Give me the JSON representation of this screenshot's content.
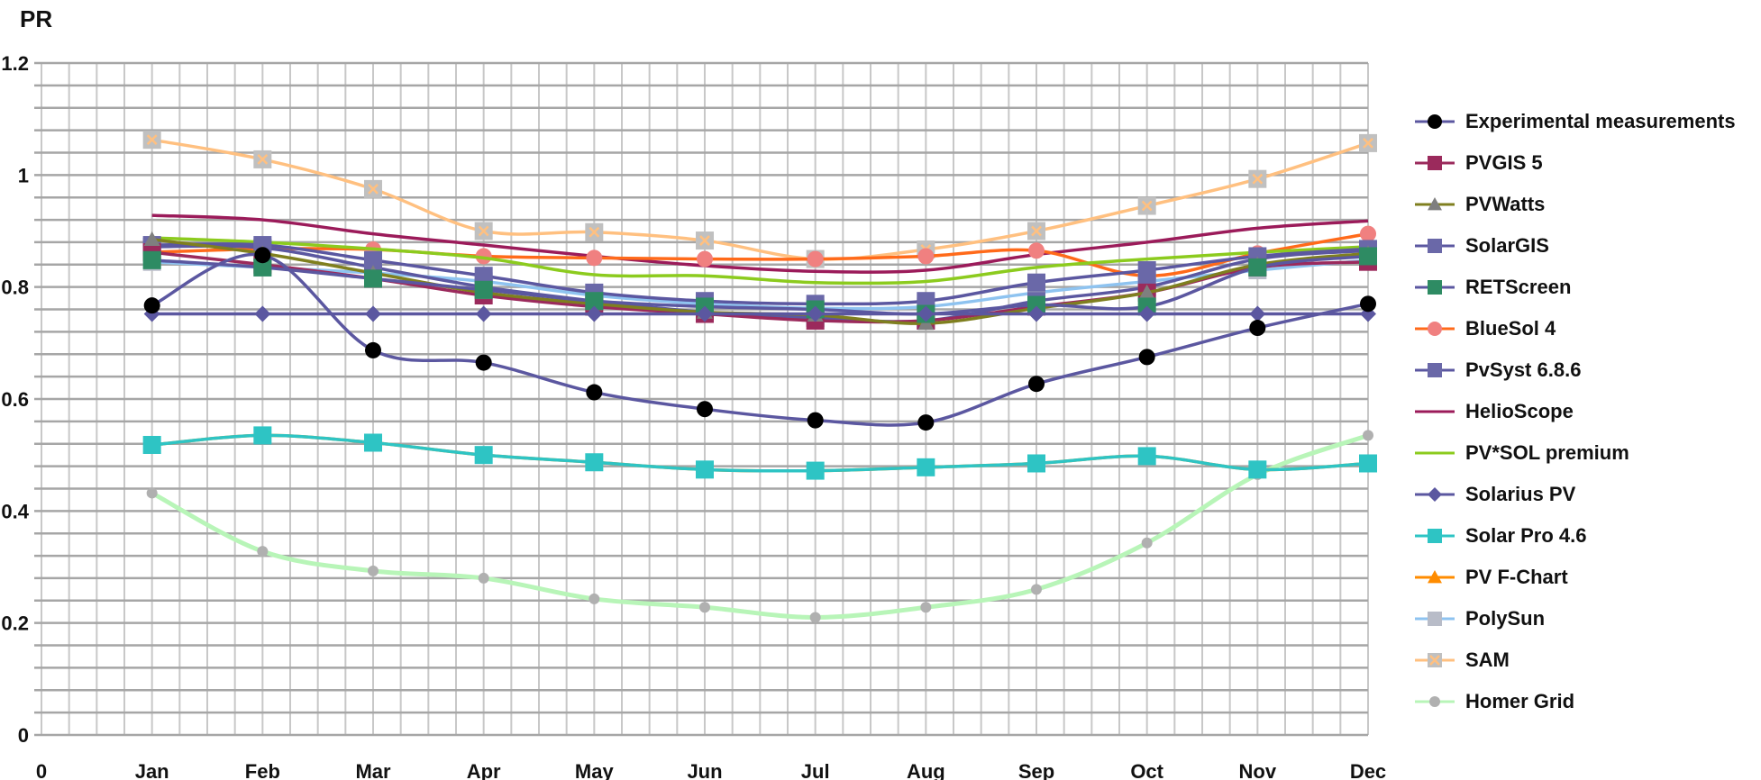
{
  "chart_data": {
    "type": "line",
    "title": "",
    "ylabel": "PR",
    "xlabel": "",
    "ylim": [
      0,
      1.2
    ],
    "yticks": [
      0,
      0.2,
      0.4,
      0.6,
      0.8,
      1,
      1.2
    ],
    "ytick_labels": [
      "0",
      "0.2",
      "0.4",
      "0.6",
      "0.8",
      "1",
      "1.2"
    ],
    "x_origin_label": "0",
    "categories": [
      "Jan",
      "Feb",
      "Mar",
      "Apr",
      "May",
      "Jun",
      "Jul",
      "Aug",
      "Sep",
      "Oct",
      "Nov",
      "Dec"
    ],
    "grid": true,
    "legend_position": "right",
    "series": [
      {
        "name": "Experimental measurements",
        "color": "#5B57A0",
        "marker": "circle",
        "marker_color": "#000000",
        "values": [
          0.767,
          0.857,
          0.687,
          0.665,
          0.612,
          0.582,
          0.562,
          0.558,
          0.627,
          0.675,
          0.727,
          0.77
        ]
      },
      {
        "name": "PVGIS 5",
        "color": "#9B2A5C",
        "marker": "square",
        "marker_color": "#9B2A5C",
        "values": [
          0.862,
          0.84,
          0.815,
          0.785,
          0.765,
          0.752,
          0.74,
          0.74,
          0.765,
          0.79,
          0.835,
          0.845
        ]
      },
      {
        "name": "PVWatts",
        "color": "#7F7F1F",
        "marker": "triangle",
        "marker_color": "#7F7F7F",
        "values": [
          0.885,
          0.86,
          0.825,
          0.79,
          0.77,
          0.755,
          0.75,
          0.735,
          0.762,
          0.79,
          0.84,
          0.86
        ]
      },
      {
        "name": "SolarGIS",
        "color": "#5B57A0",
        "marker": "square",
        "marker_color": "#6A68A8",
        "values": [
          0.875,
          0.875,
          0.848,
          0.82,
          0.79,
          0.775,
          0.77,
          0.775,
          0.808,
          0.83,
          0.855,
          0.868
        ]
      },
      {
        "name": "RETScreen",
        "color": "#5B57A0",
        "marker": "square",
        "marker_color": "#2E8B63",
        "values": [
          0.848,
          0.835,
          0.815,
          0.795,
          0.775,
          0.765,
          0.76,
          0.752,
          0.768,
          0.765,
          0.835,
          0.855
        ]
      },
      {
        "name": "BlueSol 4",
        "color": "#FF6A1A",
        "marker": "circle",
        "marker_color": "#F08080",
        "values": [
          0.862,
          0.868,
          0.867,
          0.855,
          0.852,
          0.85,
          0.85,
          0.855,
          0.865,
          0.82,
          0.86,
          0.895
        ]
      },
      {
        "name": "PvSyst 6.8.6",
        "color": "#5B57A0",
        "marker": "square",
        "marker_color": "#6A68A8",
        "values": [
          0.872,
          0.87,
          0.835,
          0.8,
          0.775,
          0.755,
          0.745,
          0.74,
          0.775,
          0.8,
          0.85,
          0.865
        ]
      },
      {
        "name": "HelioScope",
        "color": "#9B1B5A",
        "marker": "none",
        "marker_color": "#9B1B5A",
        "values": [
          0.928,
          0.92,
          0.895,
          0.875,
          0.855,
          0.838,
          0.828,
          0.83,
          0.858,
          0.88,
          0.905,
          0.918
        ]
      },
      {
        "name": "PV*SOL premium",
        "color": "#8CCB1E",
        "marker": "none",
        "marker_color": "#8CCB1E",
        "values": [
          0.888,
          0.88,
          0.868,
          0.852,
          0.822,
          0.82,
          0.808,
          0.81,
          0.835,
          0.85,
          0.862,
          0.872
        ]
      },
      {
        "name": "Solarius PV",
        "color": "#5B57A0",
        "marker": "diamond",
        "marker_color": "#5B57A0",
        "values": [
          0.752,
          0.752,
          0.752,
          0.752,
          0.752,
          0.752,
          0.752,
          0.752,
          0.752,
          0.752,
          0.752,
          0.752
        ]
      },
      {
        "name": "Solar Pro 4.6",
        "color": "#2EC4C4",
        "marker": "square",
        "marker_color": "#2EC4C4",
        "values": [
          0.518,
          0.535,
          0.522,
          0.5,
          0.487,
          0.474,
          0.472,
          0.478,
          0.485,
          0.498,
          0.474,
          0.485
        ]
      },
      {
        "name": "PV F-Chart",
        "color": "#FF8C00",
        "marker": "triangle",
        "marker_color": "#FF8C00",
        "values": [
          0.518,
          0.535,
          0.522,
          0.5,
          0.487,
          0.474,
          0.472,
          0.478,
          0.485,
          0.498,
          0.474,
          0.485
        ]
      },
      {
        "name": "PolySun",
        "color": "#8EC3F0",
        "marker": "square",
        "marker_color": "#B8BCC8",
        "values": [
          0.845,
          0.835,
          0.825,
          0.81,
          0.785,
          0.77,
          0.762,
          0.765,
          0.79,
          0.81,
          0.83,
          0.848
        ]
      },
      {
        "name": "SAM",
        "color": "#FFC080",
        "marker": "xsquare",
        "marker_color": "#C0C0C0",
        "values": [
          1.063,
          1.028,
          0.975,
          0.9,
          0.898,
          0.883,
          0.85,
          0.867,
          0.9,
          0.945,
          0.993,
          1.057
        ]
      },
      {
        "name": "Homer Grid",
        "color": "#B8F5B8",
        "marker": "circle-small",
        "marker_color": "#B0B0B0",
        "values": [
          0.432,
          0.328,
          0.293,
          0.28,
          0.243,
          0.228,
          0.21,
          0.228,
          0.26,
          0.343,
          0.465,
          0.535
        ]
      }
    ]
  }
}
